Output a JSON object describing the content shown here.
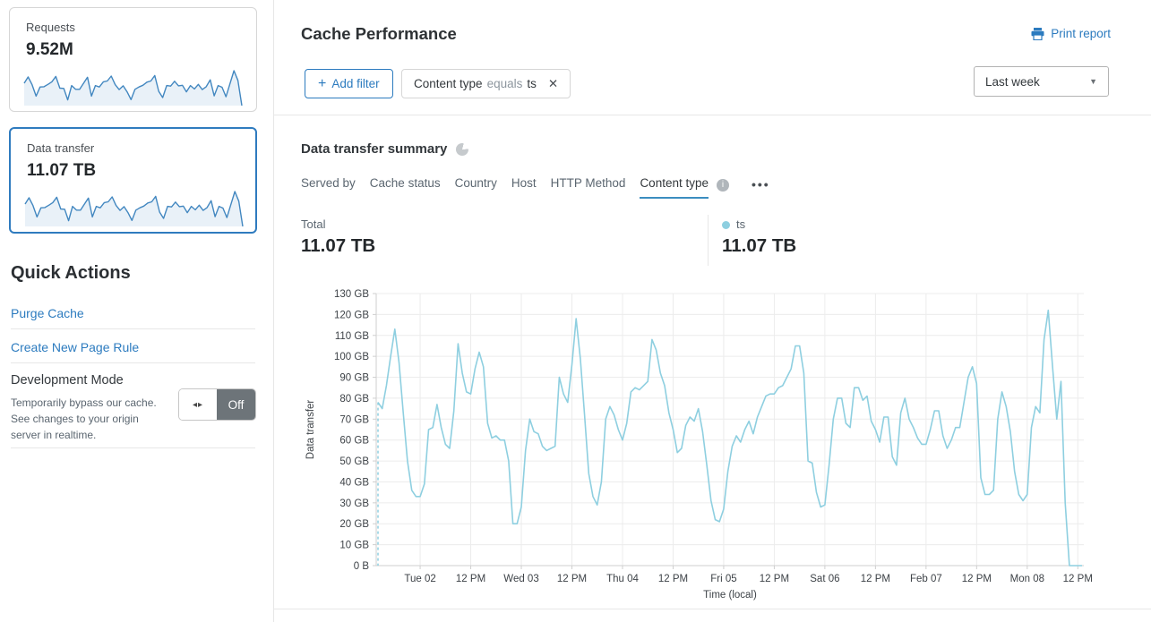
{
  "sidebar": {
    "cards": [
      {
        "label": "Requests",
        "value": "9.52M",
        "spark": [
          78,
          100,
          73,
          33,
          65,
          66,
          74,
          83,
          102,
          61,
          60,
          20,
          70,
          57,
          57,
          78,
          99,
          33,
          70,
          65,
          83,
          86,
          103,
          73,
          56,
          69,
          48,
          21,
          57,
          65,
          71,
          82,
          86,
          105,
          50,
          28,
          70,
          68,
          85,
          69,
          71,
          48,
          70,
          58,
          74,
          56,
          66,
          90,
          34,
          70,
          64,
          31,
          76,
          122,
          88,
          0
        ]
      },
      {
        "label": "Data transfer",
        "value": "11.07 TB",
        "spark": [
          78,
          100,
          73,
          33,
          65,
          66,
          74,
          83,
          102,
          61,
          60,
          20,
          70,
          57,
          57,
          78,
          99,
          33,
          70,
          65,
          83,
          86,
          103,
          73,
          56,
          69,
          48,
          21,
          57,
          65,
          71,
          82,
          86,
          105,
          50,
          28,
          70,
          68,
          85,
          69,
          71,
          48,
          70,
          58,
          74,
          56,
          66,
          90,
          34,
          70,
          64,
          31,
          76,
          122,
          88,
          0
        ]
      }
    ],
    "quick_actions_title": "Quick Actions",
    "links": [
      {
        "label": "Purge Cache"
      },
      {
        "label": "Create New Page Rule"
      }
    ],
    "dev_mode": {
      "title": "Development Mode",
      "description": "Temporarily bypass our cache. See changes to your origin server in realtime.",
      "toggle_state": "Off",
      "toggle_glyph": "◂▸"
    }
  },
  "header": {
    "title": "Cache Performance",
    "print_label": "Print report"
  },
  "filter_bar": {
    "plus": "+",
    "add_filter_label": "Add filter",
    "chip": {
      "field": "Content type",
      "operator": "equals",
      "value": "ts"
    },
    "close_glyph": "✕",
    "time_range": "Last week",
    "caret_glyph": "▼"
  },
  "summary": {
    "title": "Data transfer summary",
    "tabs": [
      "Served by",
      "Cache status",
      "Country",
      "Host",
      "HTTP Method",
      "Content type"
    ],
    "active_tab": "Content type",
    "info_glyph": "i",
    "more_glyph": "•••",
    "total_label": "Total",
    "total_value": "11.07 TB",
    "legend": {
      "name": "ts",
      "value": "11.07 TB",
      "color": "#8ecfe0"
    }
  },
  "chart_data": {
    "type": "line",
    "title": "Data transfer summary — Content type: ts",
    "ylabel": "Data transfer",
    "xlabel": "Time (local)",
    "unit": "GB",
    "ylim_gb": [
      0,
      130
    ],
    "y_tick_step_gb": 10,
    "y_tick_labels": [
      "0 B",
      "10 GB",
      "20 GB",
      "30 GB",
      "40 GB",
      "50 GB",
      "60 GB",
      "70 GB",
      "80 GB",
      "90 GB",
      "100 GB",
      "110 GB",
      "120 GB",
      "130 GB"
    ],
    "x_ticks": [
      {
        "index": 10,
        "label": "Tue 02"
      },
      {
        "index": 22,
        "label": "12 PM"
      },
      {
        "index": 34,
        "label": "Wed 03"
      },
      {
        "index": 46,
        "label": "12 PM"
      },
      {
        "index": 58,
        "label": "Thu 04"
      },
      {
        "index": 70,
        "label": "12 PM"
      },
      {
        "index": 82,
        "label": "Fri 05"
      },
      {
        "index": 94,
        "label": "12 PM"
      },
      {
        "index": 106,
        "label": "Sat 06"
      },
      {
        "index": 118,
        "label": "12 PM"
      },
      {
        "index": 130,
        "label": "Feb 07"
      },
      {
        "index": 142,
        "label": "12 PM"
      },
      {
        "index": 154,
        "label": "Mon 08"
      },
      {
        "index": 166,
        "label": "12 PM"
      }
    ],
    "grid": true,
    "incomplete_start_dashed": true,
    "series": [
      {
        "name": "ts",
        "color": "#8ecfe0",
        "values_gb": [
          78,
          75,
          86,
          100,
          113,
          97,
          73,
          50,
          36,
          33,
          33,
          39,
          65,
          66,
          77,
          66,
          58,
          56,
          74,
          106,
          92,
          83,
          82,
          94,
          102,
          95,
          68,
          61,
          62,
          60,
          60,
          50,
          20,
          20,
          28,
          55,
          70,
          64,
          63,
          57,
          55,
          56,
          57,
          90,
          82,
          78,
          96,
          118,
          99,
          72,
          44,
          33,
          29,
          40,
          70,
          76,
          72,
          65,
          60,
          68,
          83,
          85,
          84,
          86,
          88,
          108,
          103,
          92,
          86,
          73,
          65,
          54,
          56,
          67,
          71,
          69,
          75,
          64,
          48,
          31,
          22,
          21,
          27,
          45,
          57,
          62,
          59,
          65,
          69,
          63,
          71,
          76,
          81,
          82,
          82,
          85,
          86,
          90,
          94,
          105,
          105,
          92,
          50,
          49,
          35,
          28,
          29,
          48,
          70,
          80,
          80,
          68,
          66,
          85,
          85,
          79,
          81,
          69,
          65,
          59,
          71,
          71,
          52,
          48,
          73,
          80,
          70,
          66,
          61,
          58,
          58,
          65,
          74,
          74,
          62,
          56,
          60,
          66,
          66,
          78,
          90,
          95,
          87,
          42,
          34,
          34,
          36,
          70,
          83,
          76,
          64,
          45,
          34,
          31,
          34,
          66,
          76,
          73,
          108,
          122,
          95,
          70,
          88,
          30,
          0,
          0,
          0,
          0
        ]
      }
    ]
  },
  "colors": {
    "accent_blue": "#2c7bbf",
    "selected_card_border": "#2f7bbf",
    "spark_line": "#4287c0",
    "spark_fill": "#e9f1f8",
    "chart_line": "#8ecfe0",
    "toggle_off_bg": "#6d7479",
    "grid_line": "#ececec",
    "axis_line": "#cfcfcf"
  }
}
